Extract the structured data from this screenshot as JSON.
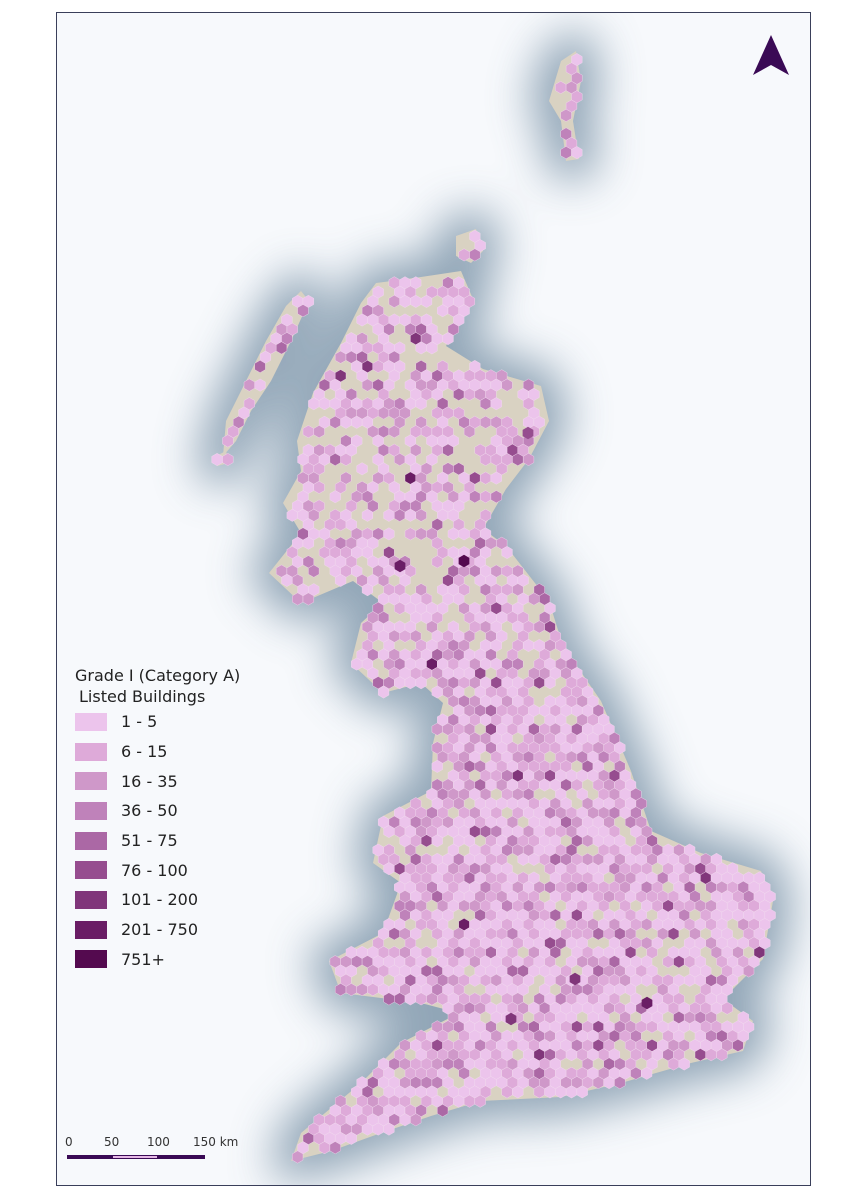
{
  "legend": {
    "title_line1": "Grade I (Category A)",
    "title_line2": "Listed Buildings",
    "classes": [
      {
        "label": "1 - 5",
        "color": "#ecc4ec"
      },
      {
        "label": "6 - 15",
        "color": "#deaad9"
      },
      {
        "label": "16 - 35",
        "color": "#cf98c9"
      },
      {
        "label": "36 - 50",
        "color": "#bf82ba"
      },
      {
        "label": "51 - 75",
        "color": "#ab68a5"
      },
      {
        "label": "76 - 100",
        "color": "#964d8f"
      },
      {
        "label": "101 - 200",
        "color": "#80367a"
      },
      {
        "label": "201 - 750",
        "color": "#6a1d65"
      },
      {
        "label": "751+",
        "color": "#540a4f"
      }
    ]
  },
  "scale_bar": {
    "labels": [
      "0",
      "50",
      "100",
      "150 km"
    ],
    "color": "#3a0a55"
  },
  "north_arrow": {
    "icon": "north-arrow-icon",
    "color": "#3a0a55"
  },
  "colors": {
    "land": "#d9d2c2",
    "sea_glow": "#6f8aa0",
    "background": "#f7f9fc"
  }
}
